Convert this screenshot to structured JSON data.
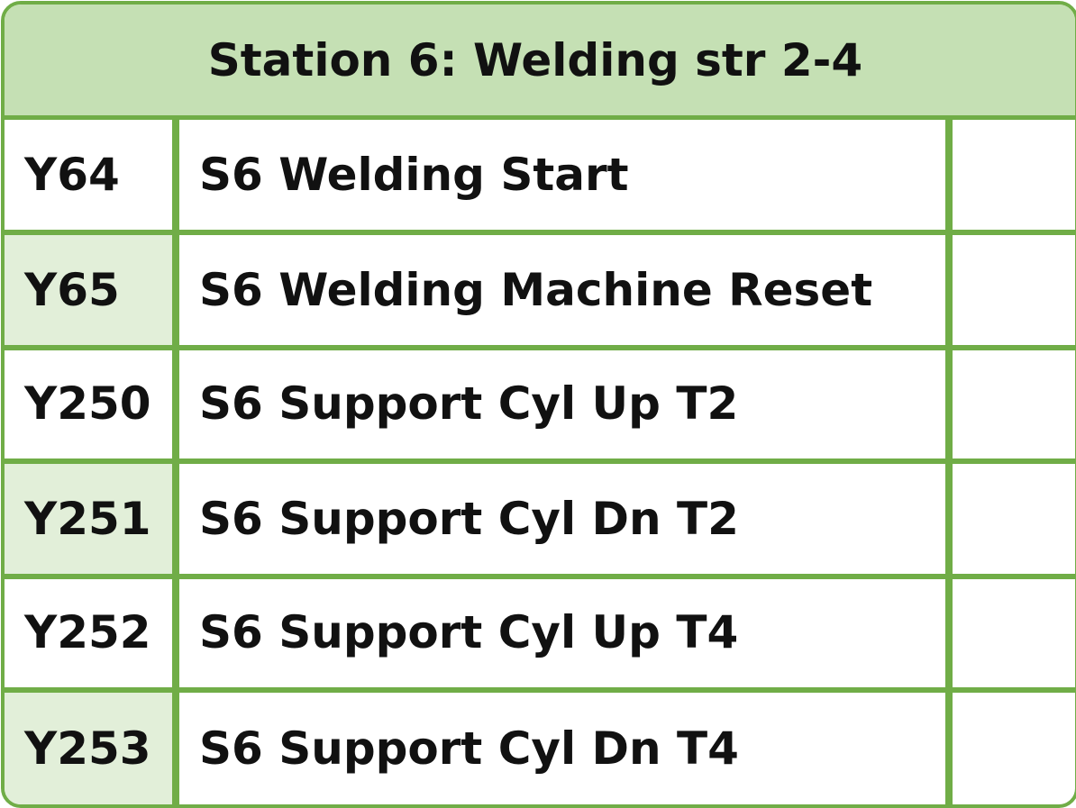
{
  "panel": {
    "title": "Station 6: Welding str 2-4",
    "accent_color": "#70ad47",
    "header_fill": "#c5e0b4",
    "shade_fill": "#e2efd9"
  },
  "rows": [
    {
      "code": "Y64",
      "description": "S6 Welding Start",
      "extra": ""
    },
    {
      "code": "Y65",
      "description": "S6 Welding Machine Reset",
      "extra": ""
    },
    {
      "code": "Y250",
      "description": "S6 Support Cyl Up T2",
      "extra": ""
    },
    {
      "code": "Y251",
      "description": "S6 Support Cyl Dn T2",
      "extra": ""
    },
    {
      "code": "Y252",
      "description": "S6 Support Cyl Up T4",
      "extra": ""
    },
    {
      "code": "Y253",
      "description": "S6 Support Cyl Dn T4",
      "extra": ""
    }
  ]
}
